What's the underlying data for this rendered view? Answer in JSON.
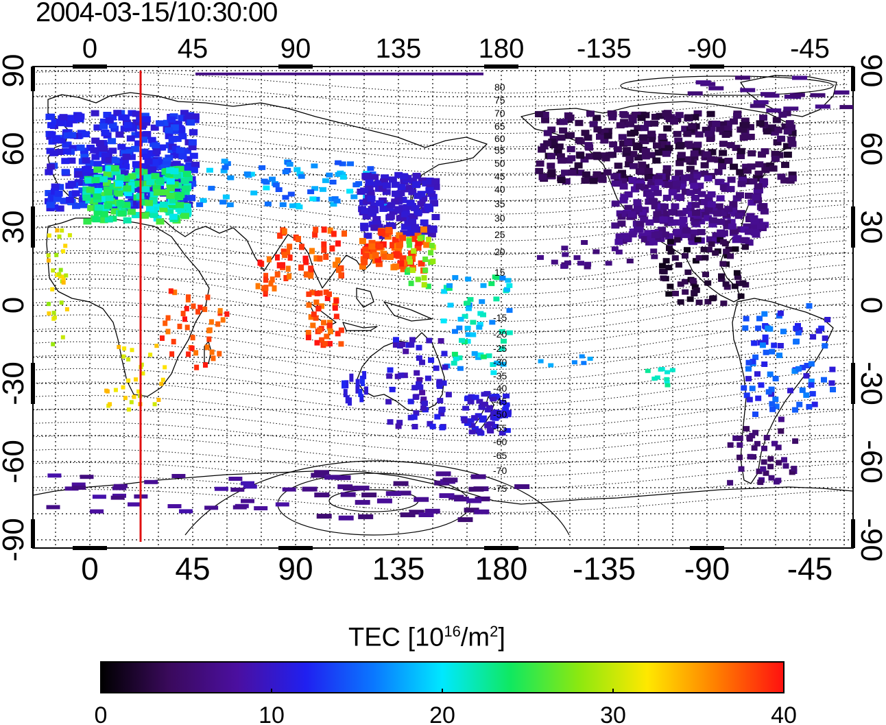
{
  "title": "2004-03-15/10:30:00",
  "map": {
    "top_lon_ticks": [
      "0",
      "45",
      "90",
      "135",
      "180",
      "-135",
      "-90",
      "-45"
    ],
    "bottom_lon_ticks": [
      "0",
      "45",
      "90",
      "135",
      "180",
      "-135",
      "-90",
      "-45"
    ],
    "left_lat_ticks": [
      "90",
      "60",
      "30",
      "0",
      "-30",
      "-60",
      "-90"
    ],
    "right_lat_ticks": [
      "90",
      "60",
      "30",
      "0",
      "-30",
      "-60",
      "-90"
    ],
    "contour_labels_north": [
      "80",
      "75",
      "70",
      "65",
      "60",
      "55",
      "50",
      "45",
      "40",
      "35",
      "30",
      "25",
      "20",
      "15"
    ],
    "contour_labels_south": [
      "-15",
      "-20",
      "-25",
      "-30",
      "-35",
      "-40",
      "-45",
      "-50",
      "-55",
      "-60",
      "-65",
      "-70",
      "-75"
    ],
    "terminator_color": "#e01010"
  },
  "colorbar": {
    "title_prefix": "TEC  [10",
    "title_exp1": "16",
    "title_mid": "/m",
    "title_exp2": "2",
    "title_suffix": "]",
    "ticks": [
      "0",
      "10",
      "20",
      "30",
      "40"
    ],
    "stops": [
      "#000000",
      "#3a0a5c",
      "#4b0fa0",
      "#2020f0",
      "#0a78ff",
      "#00e8ff",
      "#10e860",
      "#8ce810",
      "#ffe800",
      "#ff8000",
      "#ff1010"
    ]
  }
}
